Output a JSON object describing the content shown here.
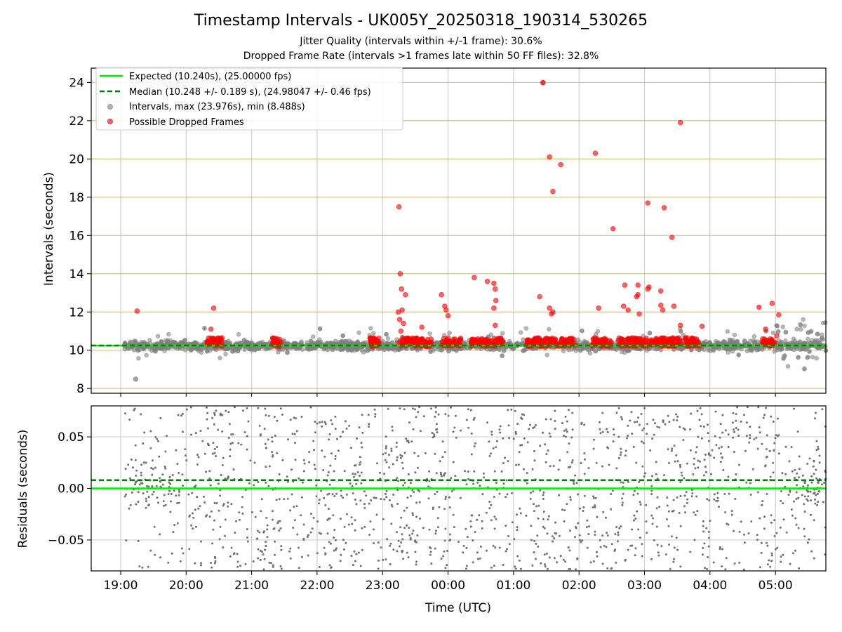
{
  "figure": {
    "title": "Timestamp Intervals - UK005Y_20250318_190314_530265",
    "subtitle_1": "Jitter Quality (intervals within +/-1 frame): 30.6%",
    "subtitle_2": "Dropped Frame Rate (intervals >1 frames late within 50 FF files): 32.8%"
  },
  "chart_data": [
    {
      "type": "scatter",
      "ylabel": "Intervals (seconds)",
      "ylim": [
        7.75,
        24.75
      ],
      "yticks": [
        8,
        10,
        12,
        14,
        16,
        18,
        20,
        22,
        24
      ],
      "xlim_hours": [
        18.55,
        29.77
      ],
      "grid": true,
      "legend_placement": "top-left",
      "legend": [
        {
          "label": "Expected (10.240s), (25.00000 fps)",
          "style": "solid-line",
          "color": "#00ee00"
        },
        {
          "label": "Median (10.248 +/- 0.189 s), (24.98047 +/- 0.46 fps)",
          "style": "dashed-line",
          "color": "#008000"
        },
        {
          "label": "Intervals, max (23.976s), min (8.488s)",
          "style": "dot",
          "color": "#808080"
        },
        {
          "label": "Possible Dropped Frames",
          "style": "dot",
          "color": "#ff0000"
        }
      ],
      "expected_interval": 10.24,
      "median_interval": 10.248,
      "dropped_frame_points": [
        [
          19.25,
          12.05
        ],
        [
          20.42,
          12.2
        ],
        [
          20.38,
          11.1
        ],
        [
          23.25,
          17.5
        ],
        [
          23.27,
          14.0
        ],
        [
          23.29,
          13.2
        ],
        [
          23.35,
          12.9
        ],
        [
          23.3,
          12.1
        ],
        [
          23.24,
          12.0
        ],
        [
          23.26,
          11.6
        ],
        [
          23.32,
          11.4
        ],
        [
          23.28,
          11.0
        ],
        [
          23.6,
          11.2
        ],
        [
          23.9,
          12.9
        ],
        [
          23.95,
          12.3
        ],
        [
          23.97,
          12.1
        ],
        [
          24.0,
          11.8
        ],
        [
          24.4,
          13.8
        ],
        [
          24.6,
          13.6
        ],
        [
          24.7,
          13.5
        ],
        [
          24.72,
          13.2
        ],
        [
          24.73,
          12.6
        ],
        [
          24.7,
          12.2
        ],
        [
          24.72,
          11.3
        ],
        [
          25.45,
          24.0
        ],
        [
          25.55,
          20.1
        ],
        [
          25.72,
          19.7
        ],
        [
          25.6,
          18.3
        ],
        [
          25.4,
          12.8
        ],
        [
          25.55,
          12.2
        ],
        [
          25.6,
          12.0
        ],
        [
          25.58,
          11.9
        ],
        [
          26.25,
          20.3
        ],
        [
          26.52,
          16.35
        ],
        [
          26.3,
          12.2
        ],
        [
          26.7,
          13.4
        ],
        [
          26.68,
          12.3
        ],
        [
          26.75,
          12.1
        ],
        [
          26.9,
          13.4
        ],
        [
          26.9,
          12.9
        ],
        [
          26.88,
          12.8
        ],
        [
          26.92,
          11.9
        ],
        [
          27.05,
          17.7
        ],
        [
          27.07,
          13.3
        ],
        [
          27.05,
          13.2
        ],
        [
          27.3,
          17.45
        ],
        [
          27.42,
          15.9
        ],
        [
          27.25,
          13.1
        ],
        [
          27.25,
          12.35
        ],
        [
          27.28,
          12.1
        ],
        [
          27.45,
          12.3
        ],
        [
          27.55,
          21.9
        ],
        [
          27.55,
          11.3
        ],
        [
          27.88,
          11.25
        ],
        [
          28.75,
          12.25
        ],
        [
          28.95,
          12.45
        ],
        [
          29.05,
          11.85
        ],
        [
          28.85,
          11.1
        ],
        [
          29.02,
          10.75
        ]
      ],
      "max_interval_point": [
        25.45,
        23.976
      ],
      "min_interval_point": [
        19.23,
        8.488
      ]
    },
    {
      "type": "scatter",
      "ylabel": "Residuals (seconds)",
      "xlabel": "Time (UTC)",
      "ylim": [
        -0.08,
        0.08
      ],
      "yticks": [
        0.05,
        0.0,
        -0.05
      ],
      "ytick_labels": [
        "0.05",
        "0.00",
        "−0.05"
      ],
      "expected_residual": 0.0,
      "median_residual": 0.008,
      "grid": true
    }
  ],
  "xaxis": {
    "tick_labels": [
      "19:00",
      "20:00",
      "21:00",
      "22:00",
      "23:00",
      "00:00",
      "01:00",
      "02:00",
      "03:00",
      "04:00",
      "05:00"
    ],
    "tick_hours": [
      19,
      20,
      21,
      22,
      23,
      24,
      25,
      26,
      27,
      28,
      29
    ]
  }
}
